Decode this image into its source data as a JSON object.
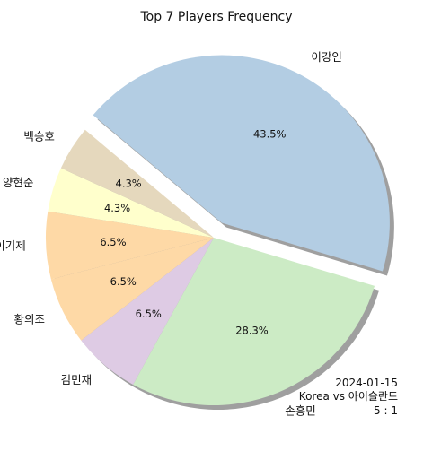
{
  "chart_data": {
    "type": "pie",
    "title": "Top 7 Players Frequency",
    "slices": [
      {
        "label": "이강인",
        "value": 43.5,
        "pct_label": "43.5%",
        "color": "#b3cde3",
        "exploded": true
      },
      {
        "label": "손흥민",
        "value": 28.3,
        "pct_label": "28.3%",
        "color": "#ccebc5",
        "exploded": false
      },
      {
        "label": "김민재",
        "value": 6.5,
        "pct_label": "6.5%",
        "color": "#decbe4",
        "exploded": false
      },
      {
        "label": "황의조",
        "value": 6.5,
        "pct_label": "6.5%",
        "color": "#fed9a6",
        "exploded": false
      },
      {
        "label": "이기제",
        "value": 6.5,
        "pct_label": "6.5%",
        "color": "#fed9a6",
        "exploded": false
      },
      {
        "label": "양현준",
        "value": 4.3,
        "pct_label": "4.3%",
        "color": "#ffffcc",
        "exploded": false
      },
      {
        "label": "백승호",
        "value": 4.3,
        "pct_label": "4.3%",
        "color": "#e5d8bd",
        "exploded": false
      }
    ],
    "shadow": true,
    "annotation": [
      "2024-01-15",
      "Korea vs 아이슬란드",
      "5 : 1"
    ]
  }
}
